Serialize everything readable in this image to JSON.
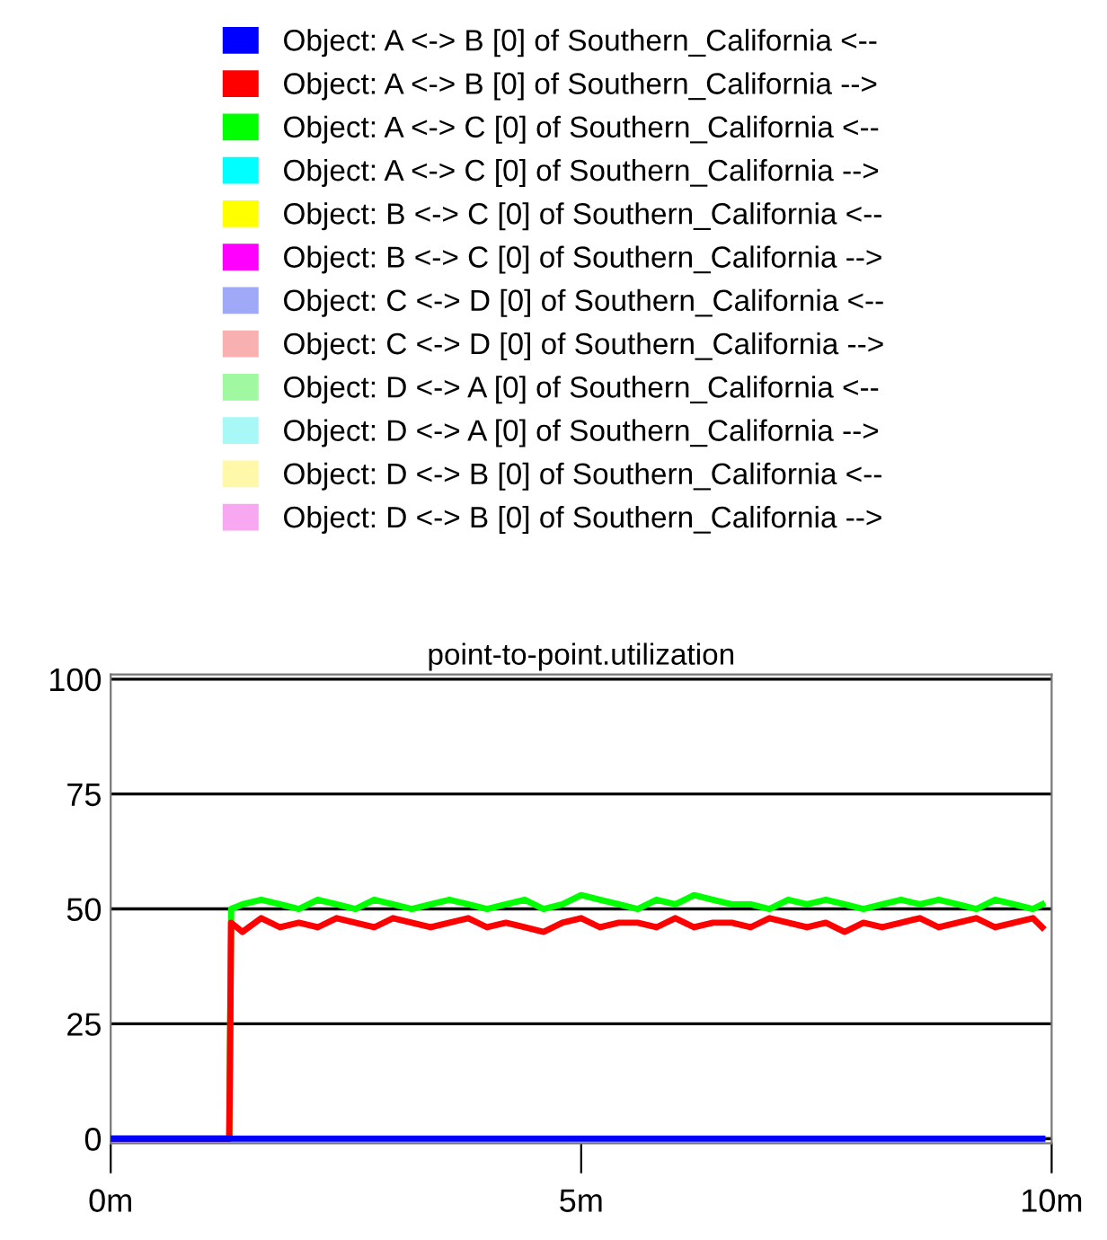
{
  "chart_data": {
    "type": "line",
    "title": "point-to-point.utilization",
    "xlim": [
      0,
      10
    ],
    "xticks": [
      {
        "value": 0,
        "label": "0m"
      },
      {
        "value": 5,
        "label": "5m"
      },
      {
        "value": 10,
        "label": "10m"
      }
    ],
    "ylim": [
      -1,
      101
    ],
    "yticks": [
      0,
      25,
      50,
      75,
      100
    ],
    "grid": "y",
    "legend": "top",
    "marker": "none",
    "line_style": "solid",
    "series": [
      {
        "name": "Object: A <-> B [0] of Southern_California <--",
        "color": "#0000ff",
        "x": [
          0,
          9.9
        ],
        "values": [
          0,
          0
        ]
      },
      {
        "name": "Object: A <-> B [0] of Southern_California -->",
        "color": "#ff0000",
        "x": [
          0,
          1.26,
          1.28,
          1.4,
          1.6,
          1.8,
          2.0,
          2.2,
          2.4,
          2.6,
          2.8,
          3.0,
          3.2,
          3.4,
          3.6,
          3.8,
          4.0,
          4.2,
          4.4,
          4.6,
          4.8,
          5.0,
          5.2,
          5.4,
          5.6,
          5.8,
          6.0,
          6.2,
          6.4,
          6.6,
          6.8,
          7.0,
          7.2,
          7.4,
          7.6,
          7.8,
          8.0,
          8.2,
          8.4,
          8.6,
          8.8,
          9.0,
          9.2,
          9.4,
          9.6,
          9.8,
          9.9
        ],
        "values": [
          0,
          0,
          47,
          45,
          48,
          46,
          47,
          46,
          48,
          47,
          46,
          48,
          47,
          46,
          47,
          48,
          46,
          47,
          46,
          45,
          47,
          48,
          46,
          47,
          47,
          46,
          48,
          46,
          47,
          47,
          46,
          48,
          47,
          46,
          47,
          45,
          47,
          46,
          47,
          48,
          46,
          47,
          48,
          46,
          47,
          48,
          46
        ]
      },
      {
        "name": "Object: A <-> C [0] of Southern_California <--",
        "color": "#00ff00",
        "x": [
          0,
          1.26,
          1.28,
          1.4,
          1.6,
          1.8,
          2.0,
          2.2,
          2.4,
          2.6,
          2.8,
          3.0,
          3.2,
          3.4,
          3.6,
          3.8,
          4.0,
          4.2,
          4.4,
          4.6,
          4.8,
          5.0,
          5.2,
          5.4,
          5.6,
          5.8,
          6.0,
          6.2,
          6.4,
          6.6,
          6.8,
          7.0,
          7.2,
          7.4,
          7.6,
          7.8,
          8.0,
          8.2,
          8.4,
          8.6,
          8.8,
          9.0,
          9.2,
          9.4,
          9.6,
          9.8,
          9.9
        ],
        "values": [
          0,
          0,
          50,
          51,
          52,
          51,
          50,
          52,
          51,
          50,
          52,
          51,
          50,
          51,
          52,
          51,
          50,
          51,
          52,
          50,
          51,
          53,
          52,
          51,
          50,
          52,
          51,
          53,
          52,
          51,
          51,
          50,
          52,
          51,
          52,
          51,
          50,
          51,
          52,
          51,
          52,
          51,
          50,
          52,
          51,
          50,
          51
        ]
      },
      {
        "name": "Object: A <-> C [0] of Southern_California -->",
        "color": "#00ffff"
      },
      {
        "name": "Object: B <-> C [0] of Southern_California <--",
        "color": "#ffff00"
      },
      {
        "name": "Object: B <-> C [0] of Southern_California -->",
        "color": "#ff00ff"
      },
      {
        "name": "Object: C <-> D [0] of Southern_California <--",
        "color": "#a0a8f8"
      },
      {
        "name": "Object: C <-> D [0] of Southern_California -->",
        "color": "#f8b0b0"
      },
      {
        "name": "Object: D <-> A [0] of Southern_California <--",
        "color": "#a0f8a0"
      },
      {
        "name": "Object: D <-> A [0] of Southern_California -->",
        "color": "#a8f8f8"
      },
      {
        "name": "Object: D <-> B [0] of Southern_California <--",
        "color": "#fff8a8"
      },
      {
        "name": "Object: D <-> B [0] of Southern_California -->",
        "color": "#f8a8f0"
      }
    ]
  }
}
